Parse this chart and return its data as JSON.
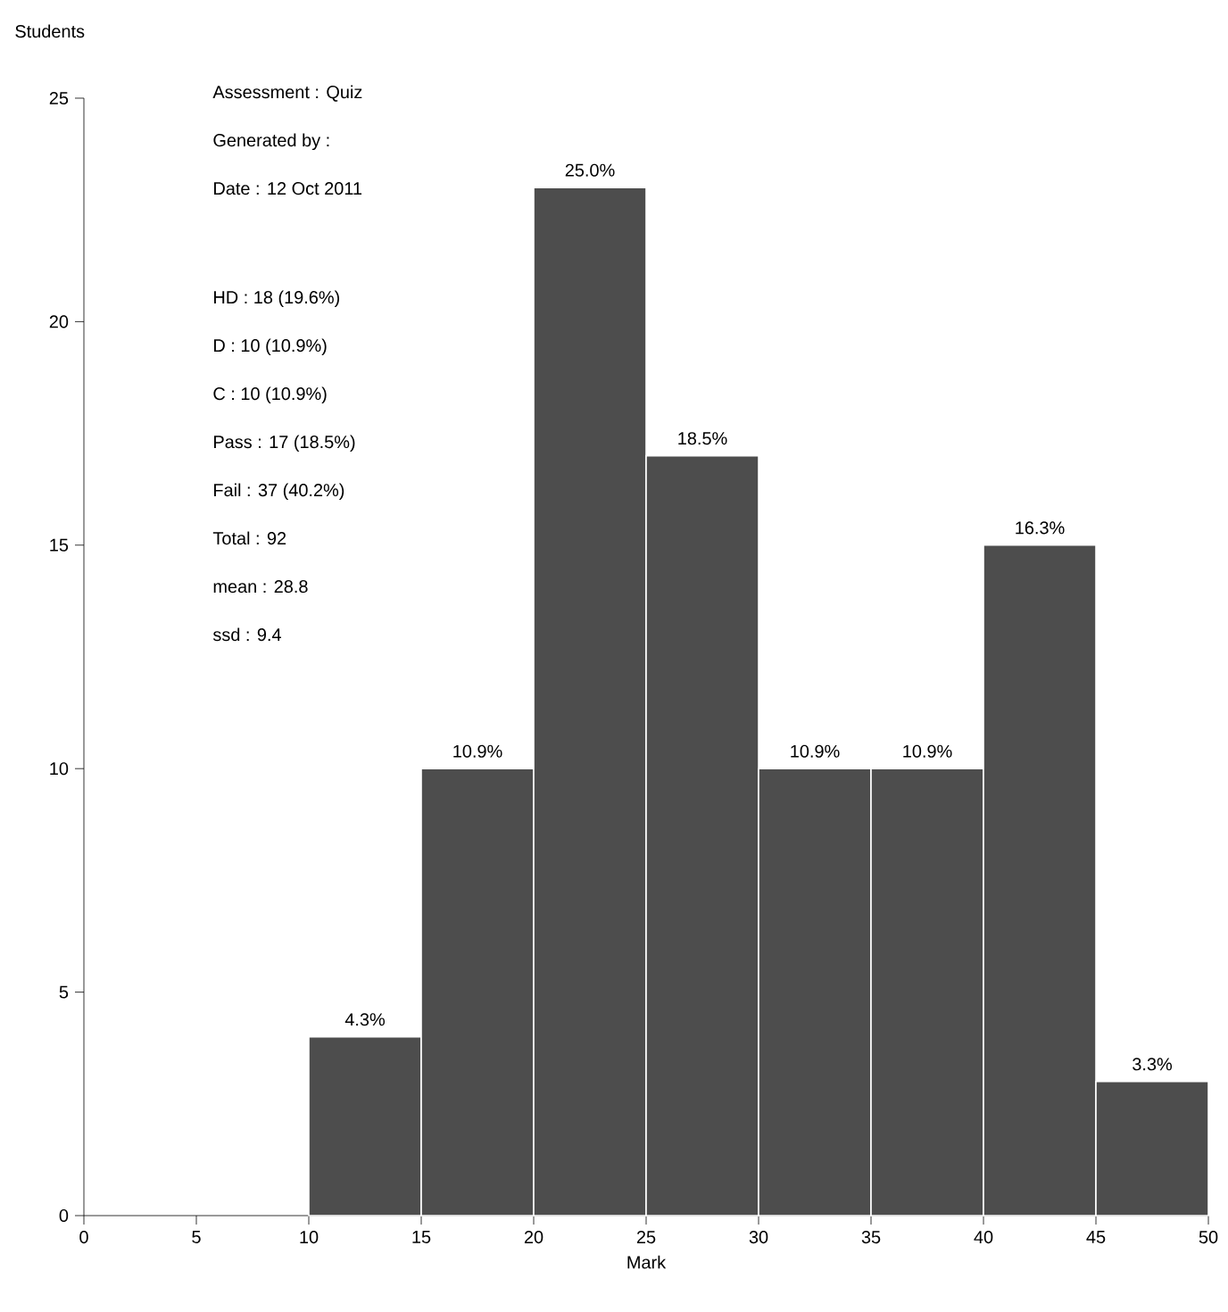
{
  "chart_data": {
    "type": "histogram",
    "xlabel": "Mark",
    "ylabel": "Students",
    "bins": [
      10,
      15,
      20,
      25,
      30,
      35,
      40,
      45,
      50
    ],
    "values": [
      4,
      10,
      23,
      17,
      10,
      10,
      15,
      3
    ],
    "color": "#4d4d4d",
    "xlim": [
      0,
      50
    ],
    "xticks": [
      0,
      5,
      10,
      15,
      20,
      25,
      30,
      35,
      40,
      45,
      50
    ],
    "ylim": [
      0,
      25
    ],
    "yticks": [
      0,
      5,
      10,
      15,
      20,
      25
    ],
    "grid": false,
    "annotations": [
      "Assessment : Quiz",
      "Generated by :",
      "Date : 12 Oct 2011",
      "HD   : 18 (19.6%)",
      "D     : 10 (10.9%)",
      "C     : 10 (10.9%)",
      "Pass : 17 (18.5%)",
      "Fail  : 37 (40.2%)",
      "Total : 92",
      "mean : 28.8",
      "ssd   : 9.4",
      {
        "text": "4.3%",
        "x": 12.5,
        "y": 4
      },
      {
        "text": "10.9%",
        "x": 17.5,
        "y": 10
      },
      {
        "text": "25.0%",
        "x": 22.5,
        "y": 23
      },
      {
        "text": "18.5%",
        "x": 27.5,
        "y": 17
      },
      {
        "text": "10.9%",
        "x": 32.5,
        "y": 10
      },
      {
        "text": "10.9%",
        "x": 37.5,
        "y": 10
      },
      {
        "text": "16.3%",
        "x": 42.5,
        "y": 15
      },
      {
        "text": "3.3%",
        "x": 47.5,
        "y": 3
      }
    ]
  }
}
